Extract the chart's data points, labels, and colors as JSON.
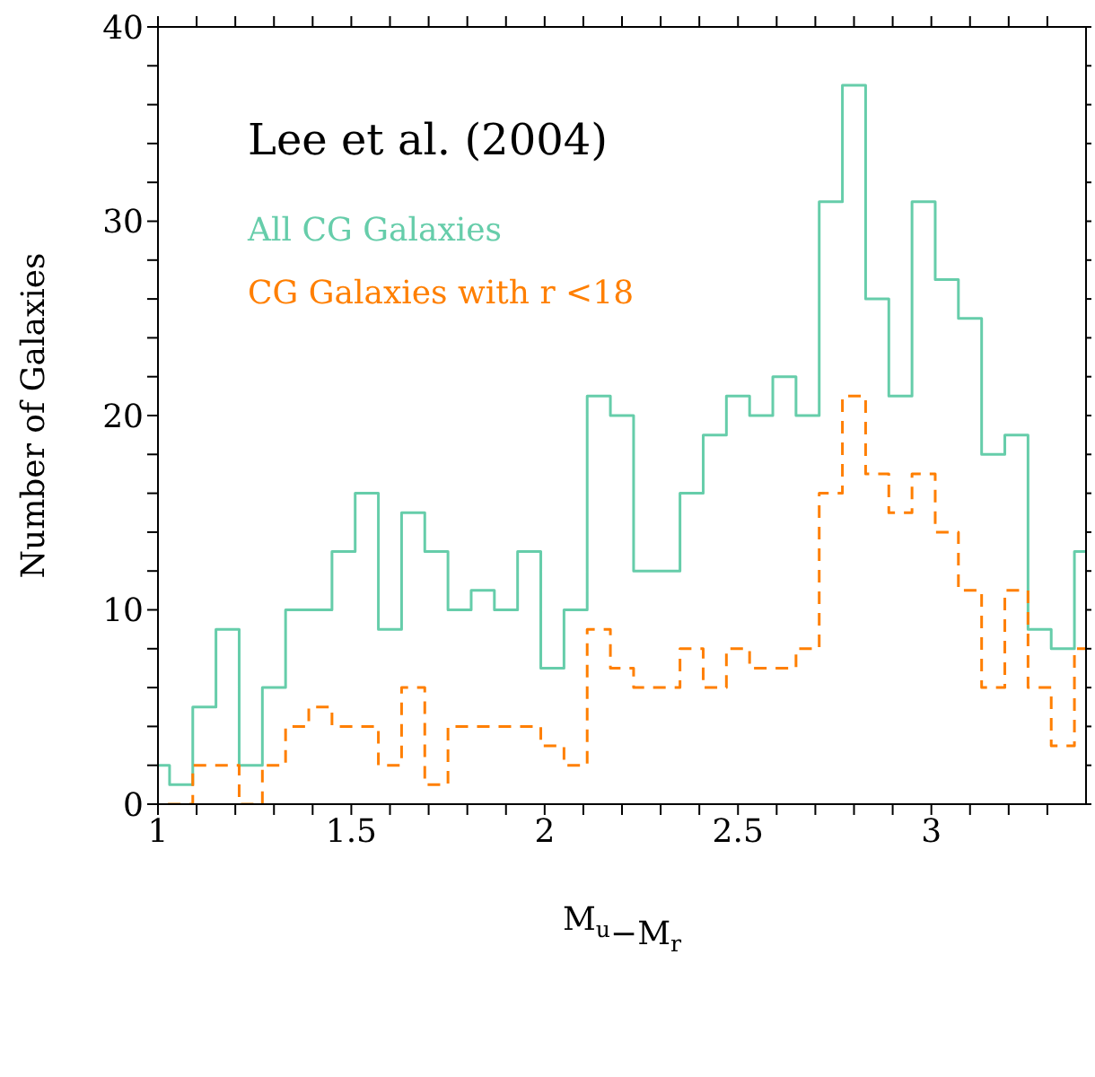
{
  "chart_data": {
    "type": "histogram",
    "xlabel": "M$_{u}$−M$_{r}$",
    "ylabel": "Number of Galaxies",
    "annotations": [
      "Lee et al. (2004)"
    ],
    "bins": [
      0.97,
      1.03,
      1.09,
      1.15,
      1.21,
      1.27,
      1.33,
      1.39,
      1.45,
      1.51,
      1.57,
      1.63,
      1.69,
      1.75,
      1.81,
      1.87,
      1.93,
      1.99,
      2.05,
      2.11,
      2.17,
      2.23,
      2.29,
      2.35,
      2.41,
      2.47,
      2.53,
      2.59,
      2.65,
      2.71,
      2.77,
      2.83,
      2.89,
      2.95,
      3.01,
      3.07,
      3.13,
      3.19,
      3.25,
      3.31,
      3.37,
      3.43
    ],
    "series": [
      {
        "name": "All CG Galaxies",
        "color": "#66cdaa",
        "line_style": "solid",
        "values": [
          2,
          1,
          5,
          9,
          2,
          6,
          10,
          10,
          13,
          16,
          9,
          15,
          13,
          10,
          11,
          10,
          13,
          7,
          10,
          21,
          20,
          12,
          12,
          16,
          19,
          21,
          20,
          22,
          20,
          31,
          37,
          26,
          21,
          31,
          27,
          25,
          18,
          19,
          9,
          8,
          13
        ]
      },
      {
        "name": "CG Galaxies with r <18",
        "color": "#ff7f00",
        "line_style": "dashed",
        "values": [
          0,
          0,
          2,
          2,
          0,
          2,
          4,
          5,
          4,
          4,
          2,
          6,
          1,
          4,
          4,
          4,
          4,
          3,
          2,
          9,
          7,
          6,
          6,
          8,
          6,
          8,
          7,
          7,
          8,
          16,
          21,
          17,
          15,
          17,
          14,
          11,
          6,
          11,
          6,
          3,
          8
        ]
      }
    ],
    "xlim": [
      1,
      3.4
    ],
    "xticks": [
      1,
      {
        "value": 1.1,
        "label": null
      },
      {
        "value": 1.2,
        "label": null
      },
      {
        "value": 1.3,
        "label": null
      },
      {
        "value": 1.4,
        "label": null
      },
      1.5,
      {
        "value": 1.6,
        "label": null
      },
      {
        "value": 1.7,
        "label": null
      },
      {
        "value": 1.8,
        "label": null
      },
      {
        "value": 1.9,
        "label": null
      },
      2,
      {
        "value": 2.1,
        "label": null
      },
      {
        "value": 2.2,
        "label": null
      },
      {
        "value": 2.3,
        "label": null
      },
      {
        "value": 2.4,
        "label": null
      },
      2.5,
      {
        "value": 2.6,
        "label": null
      },
      {
        "value": 2.7,
        "label": null
      },
      {
        "value": 2.8,
        "label": null
      },
      {
        "value": 2.9,
        "label": null
      },
      3,
      {
        "value": 3.1,
        "label": null
      },
      {
        "value": 3.2,
        "label": null
      },
      {
        "value": 3.3,
        "label": null
      }
    ],
    "ylim": [
      0,
      40
    ],
    "yticks": [
      0,
      {
        "value": 2,
        "label": null
      },
      {
        "value": 4,
        "label": null
      },
      {
        "value": 6,
        "label": null
      },
      {
        "value": 8,
        "label": null
      },
      10,
      {
        "value": 12,
        "label": null
      },
      {
        "value": 14,
        "label": null
      },
      {
        "value": 16,
        "label": null
      },
      {
        "value": 18,
        "label": null
      },
      20,
      {
        "value": 22,
        "label": null
      },
      {
        "value": 24,
        "label": null
      },
      {
        "value": 26,
        "label": null
      },
      {
        "value": 28,
        "label": null
      },
      30,
      {
        "value": 32,
        "label": null
      },
      {
        "value": 34,
        "label": null
      },
      {
        "value": 36,
        "label": null
      },
      {
        "value": 38,
        "label": null
      },
      40
    ],
    "grid": false,
    "legend": "top left"
  }
}
